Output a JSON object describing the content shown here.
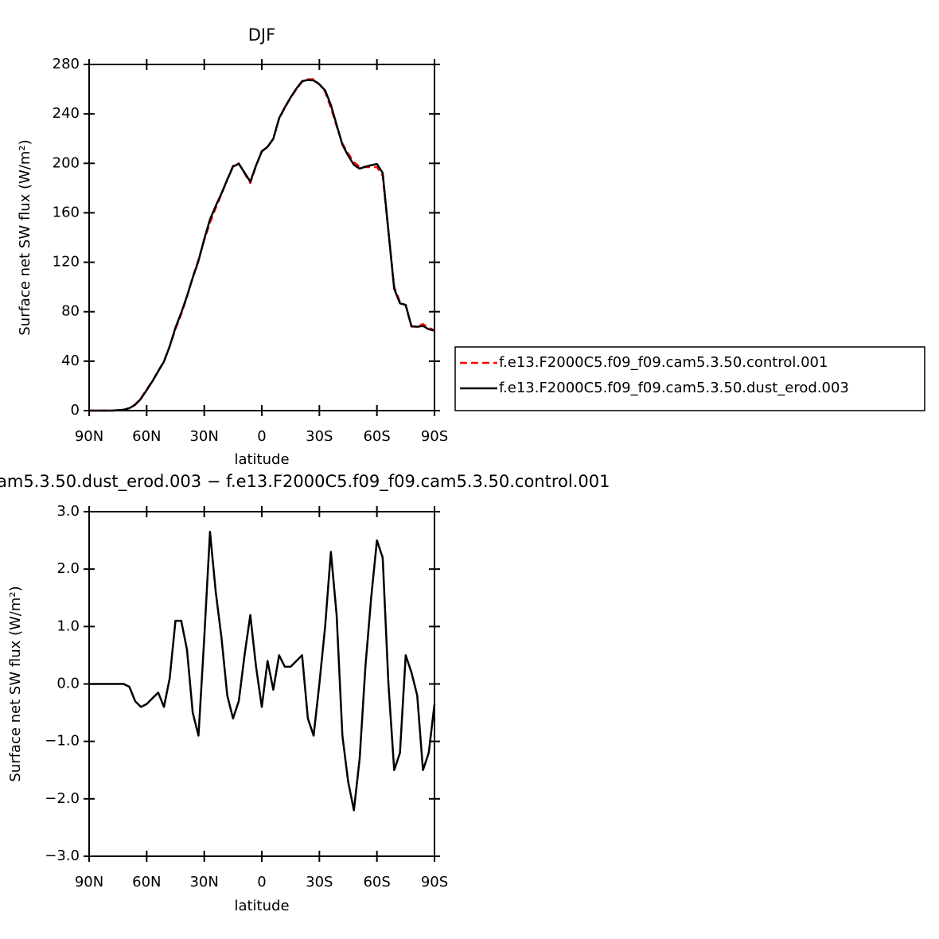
{
  "chart_data": [
    {
      "type": "line",
      "title": "DJF",
      "x_label": "latitude",
      "y_label": "Surface net SW flux (W/m²)",
      "x": [
        90,
        87,
        84,
        81,
        78,
        75,
        72,
        69,
        66,
        63,
        60,
        57,
        54,
        51,
        48,
        45,
        42,
        39,
        36,
        33,
        30,
        27,
        24,
        21,
        18,
        15,
        12,
        9,
        6,
        3,
        0,
        -3,
        -6,
        -9,
        -12,
        -15,
        -18,
        -21,
        -24,
        -27,
        -30,
        -33,
        -36,
        -39,
        -42,
        -45,
        -48,
        -51,
        -54,
        -57,
        -60,
        -63,
        -66,
        -69,
        -72,
        -75,
        -78,
        -81,
        -84,
        -87,
        -90
      ],
      "series": [
        {
          "name": "f.e13.F2000C5.f09_f09.cam5.3.50.control.001",
          "color": "#ff0000",
          "line_style": "dashed",
          "values": [
            0,
            0,
            0,
            0,
            0,
            0.3,
            0.7,
            2,
            5,
            10,
            17,
            24,
            32,
            40,
            52,
            66,
            78,
            92,
            108,
            122,
            138,
            152,
            164,
            175,
            187,
            198,
            200,
            192,
            184,
            198,
            210,
            213,
            220,
            236,
            245,
            253,
            260,
            266,
            268,
            268,
            264,
            258,
            245,
            230,
            216,
            208,
            201,
            197,
            197,
            197,
            197,
            190,
            145,
            100,
            88,
            85,
            68,
            68,
            70,
            67,
            65
          ]
        },
        {
          "name": "f.e13.F2000C5.f09_f09.cam5.3.50.dust_erod.003",
          "color": "#000000",
          "line_style": "solid",
          "values": [
            0,
            0,
            0,
            0,
            0,
            0.3,
            0.7,
            1.95,
            4.7,
            9.6,
            16.65,
            23.75,
            31.85,
            39.6,
            52.1,
            67.1,
            79.1,
            92.6,
            107.5,
            121.1,
            138.8,
            154.65,
            165.6,
            175.8,
            186.8,
            197.4,
            199.7,
            192.5,
            185.2,
            198.3,
            209.6,
            213.4,
            219.9,
            236.5,
            245.3,
            253.3,
            260.4,
            266.5,
            267.4,
            267.1,
            264,
            259,
            247.3,
            231.2,
            215.1,
            206.3,
            198.8,
            195.7,
            197.3,
            198.5,
            199.5,
            192.2,
            145,
            98.5,
            86.8,
            85.5,
            68.2,
            67.8,
            68.5,
            65.8,
            64.65
          ]
        }
      ],
      "xlim": [
        90,
        -90
      ],
      "xticks": [
        {
          "value": 90,
          "label": "90N"
        },
        {
          "value": 60,
          "label": "60N"
        },
        {
          "value": 30,
          "label": "30N"
        },
        0,
        {
          "value": -30,
          "label": "30S"
        },
        {
          "value": -60,
          "label": "60S"
        },
        {
          "value": -90,
          "label": "90S"
        }
      ],
      "ylim": [
        0,
        280
      ],
      "yticks": [
        0,
        40,
        80,
        120,
        160,
        200,
        240,
        280
      ],
      "legend": "right"
    },
    {
      "type": "line",
      "title": "am5.3.50.dust_erod.003 − f.e13.F2000C5.f09_f09.cam5.3.50.control.001",
      "x_label": "latitude",
      "y_label": "Surface net SW flux (W/m²)",
      "x": [
        90,
        87,
        84,
        81,
        78,
        75,
        72,
        69,
        66,
        63,
        60,
        57,
        54,
        51,
        48,
        45,
        42,
        39,
        36,
        33,
        30,
        27,
        24,
        21,
        18,
        15,
        12,
        9,
        6,
        3,
        0,
        -3,
        -6,
        -9,
        -12,
        -15,
        -18,
        -21,
        -24,
        -27,
        -30,
        -33,
        -36,
        -39,
        -42,
        -45,
        -48,
        -51,
        -54,
        -57,
        -60,
        -63,
        -66,
        -69,
        -72,
        -75,
        -78,
        -81,
        -84,
        -87,
        -90
      ],
      "values": [
        0,
        0,
        0,
        0,
        0,
        0,
        0,
        -0.05,
        -0.3,
        -0.4,
        -0.35,
        -0.25,
        -0.15,
        -0.4,
        0.1,
        1.1,
        1.1,
        0.6,
        -0.5,
        -0.9,
        0.8,
        2.65,
        1.6,
        0.8,
        -0.2,
        -0.6,
        -0.3,
        0.5,
        1.2,
        0.3,
        -0.4,
        0.4,
        -0.1,
        0.5,
        0.3,
        0.3,
        0.4,
        0.5,
        -0.6,
        -0.9,
        0.0,
        1.0,
        2.3,
        1.2,
        -0.9,
        -1.7,
        -2.2,
        -1.3,
        0.3,
        1.5,
        2.5,
        2.2,
        0.0,
        -1.5,
        -1.2,
        0.5,
        0.2,
        -0.2,
        -1.5,
        -1.2,
        -0.35
      ],
      "color": "#000000",
      "xlim": [
        90,
        -90
      ],
      "xticks": [
        {
          "value": 90,
          "label": "90N"
        },
        {
          "value": 60,
          "label": "60N"
        },
        {
          "value": 30,
          "label": "30N"
        },
        0,
        {
          "value": -30,
          "label": "30S"
        },
        {
          "value": -60,
          "label": "60S"
        },
        {
          "value": -90,
          "label": "90S"
        }
      ],
      "ylim": [
        -3,
        3
      ],
      "yticks": [
        {
          "value": -3,
          "label": "−3.0"
        },
        {
          "value": -2,
          "label": "−2.0"
        },
        {
          "value": -1,
          "label": "−1.0"
        },
        {
          "value": 0,
          "label": "0.0"
        },
        {
          "value": 1,
          "label": "1.0"
        },
        {
          "value": 2,
          "label": "2.0"
        },
        {
          "value": 3,
          "label": "3.0"
        }
      ]
    }
  ]
}
